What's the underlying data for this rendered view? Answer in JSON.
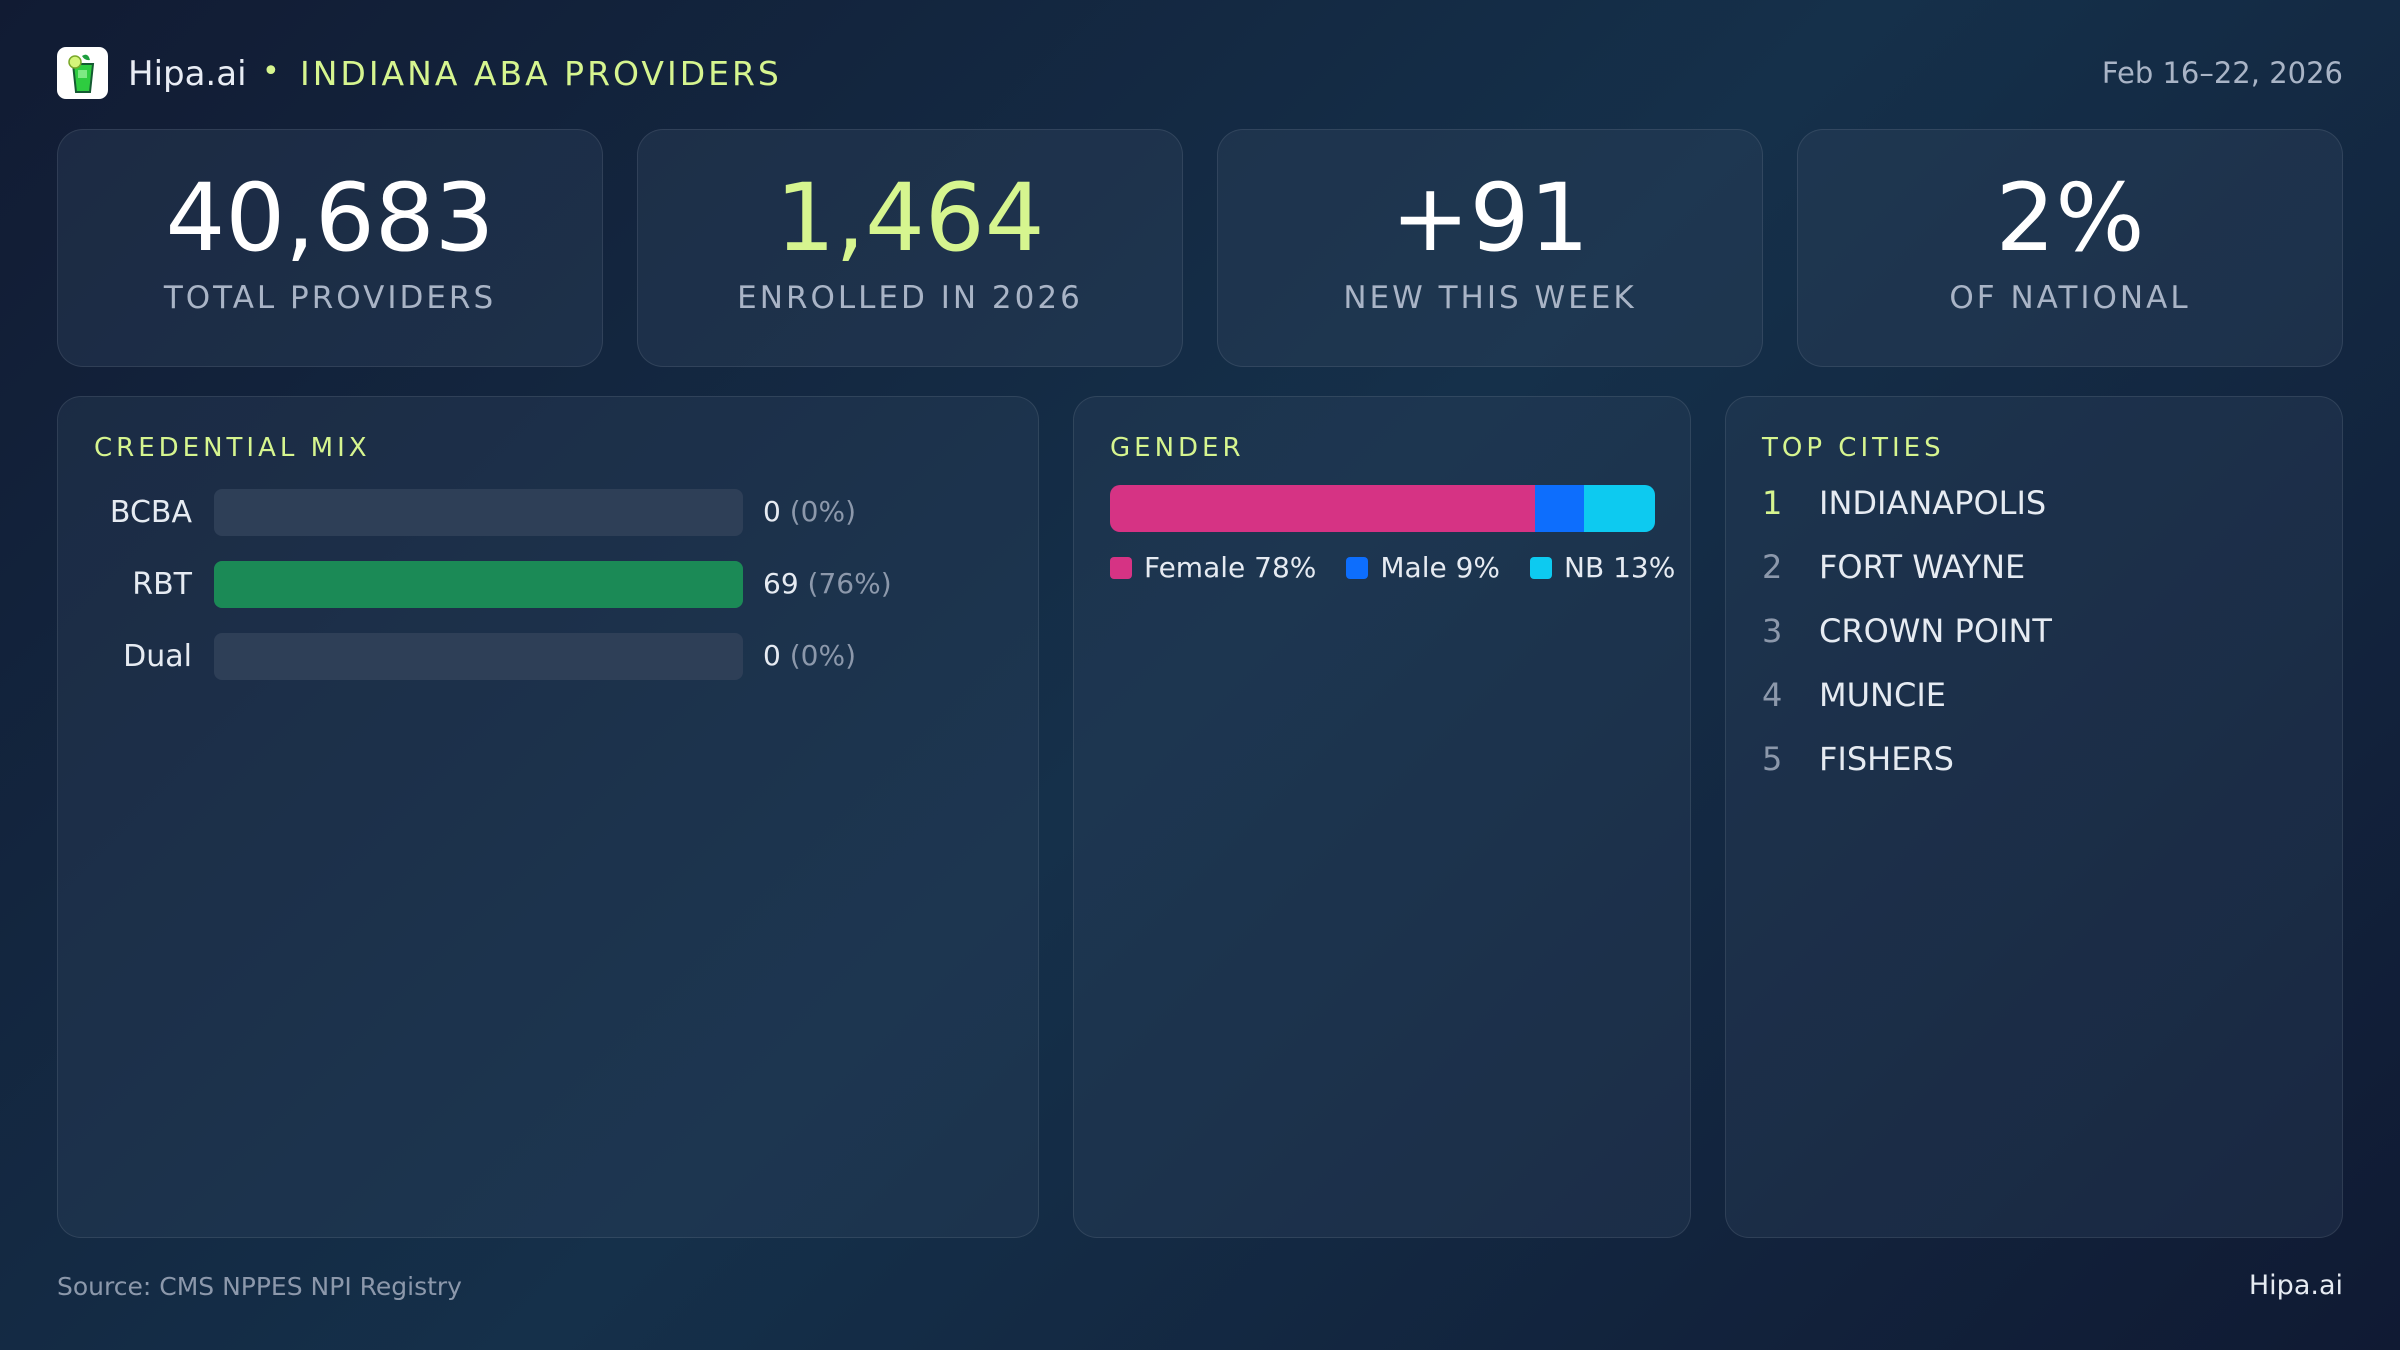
{
  "header": {
    "brand": "Hipa.ai",
    "separator": "•",
    "title": "INDIANA ABA PROVIDERS",
    "date": "Feb 16–22, 2026"
  },
  "kpis": [
    {
      "value": "40,683",
      "label": "TOTAL PROVIDERS",
      "color": "#ffffff"
    },
    {
      "value": "1,464",
      "label": "ENROLLED IN 2026",
      "color": "#d6f58f"
    },
    {
      "value": "+91",
      "label": "NEW THIS WEEK",
      "color": "#ffffff"
    },
    {
      "value": "2%",
      "label": "OF NATIONAL",
      "color": "#ffffff"
    }
  ],
  "credential": {
    "title": "CREDENTIAL MIX",
    "rows": [
      {
        "label": "BCBA",
        "count": "0",
        "pct": "(0%)",
        "fill": 0
      },
      {
        "label": "RBT",
        "count": "69",
        "pct": "(76%)",
        "fill": 100
      },
      {
        "label": "Dual",
        "count": "0",
        "pct": "(0%)",
        "fill": 0
      }
    ]
  },
  "gender": {
    "title": "GENDER",
    "segments": [
      {
        "label": "Female 78%",
        "value": 78,
        "color": "#d63384"
      },
      {
        "label": "Male 9%",
        "value": 9,
        "color": "#0d6efd"
      },
      {
        "label": "NB 13%",
        "value": 13,
        "color": "#0dcaf0"
      }
    ]
  },
  "cities": {
    "title": "TOP CITIES",
    "items": [
      {
        "rank": "1",
        "name": "INDIANAPOLIS"
      },
      {
        "rank": "2",
        "name": "FORT WAYNE"
      },
      {
        "rank": "3",
        "name": "CROWN POINT"
      },
      {
        "rank": "4",
        "name": "MUNCIE"
      },
      {
        "rank": "5",
        "name": "FISHERS"
      }
    ]
  },
  "footer": {
    "source": "Source: CMS NPPES NPI Registry",
    "brand": "Hipa.ai"
  }
}
